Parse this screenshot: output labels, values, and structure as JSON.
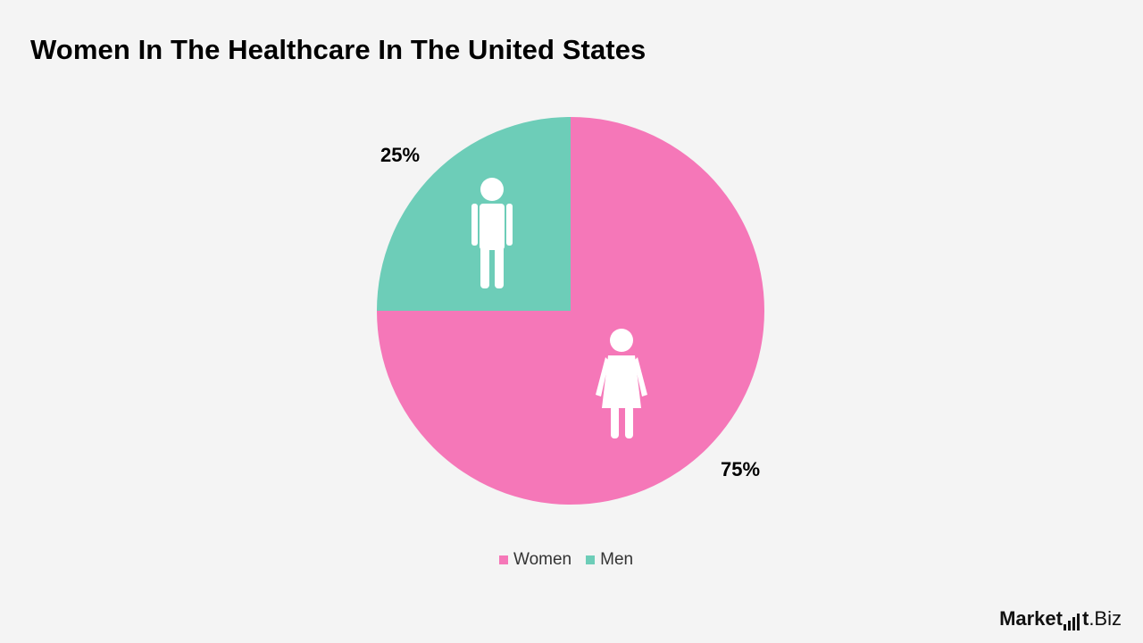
{
  "title": "Women In The Healthcare In The United States",
  "chart_data": {
    "type": "pie",
    "title": "Women In The Healthcare In The United States",
    "slices": [
      {
        "label": "Women",
        "value": 75,
        "display": "75%",
        "color": "#f577b8",
        "icon": "female-person-icon"
      },
      {
        "label": "Men",
        "value": 25,
        "display": "25%",
        "color": "#6dcdb8",
        "icon": "male-person-icon"
      }
    ],
    "start_angle_deg": 0,
    "direction": "clockwise",
    "legend_position": "bottom-center",
    "grid": false
  },
  "legend": {
    "items": [
      {
        "label": "Women",
        "color": "#f577b8"
      },
      {
        "label": "Men",
        "color": "#6dcdb8"
      }
    ]
  },
  "brand": {
    "market": "Market",
    "dot_biz": ".Biz"
  }
}
